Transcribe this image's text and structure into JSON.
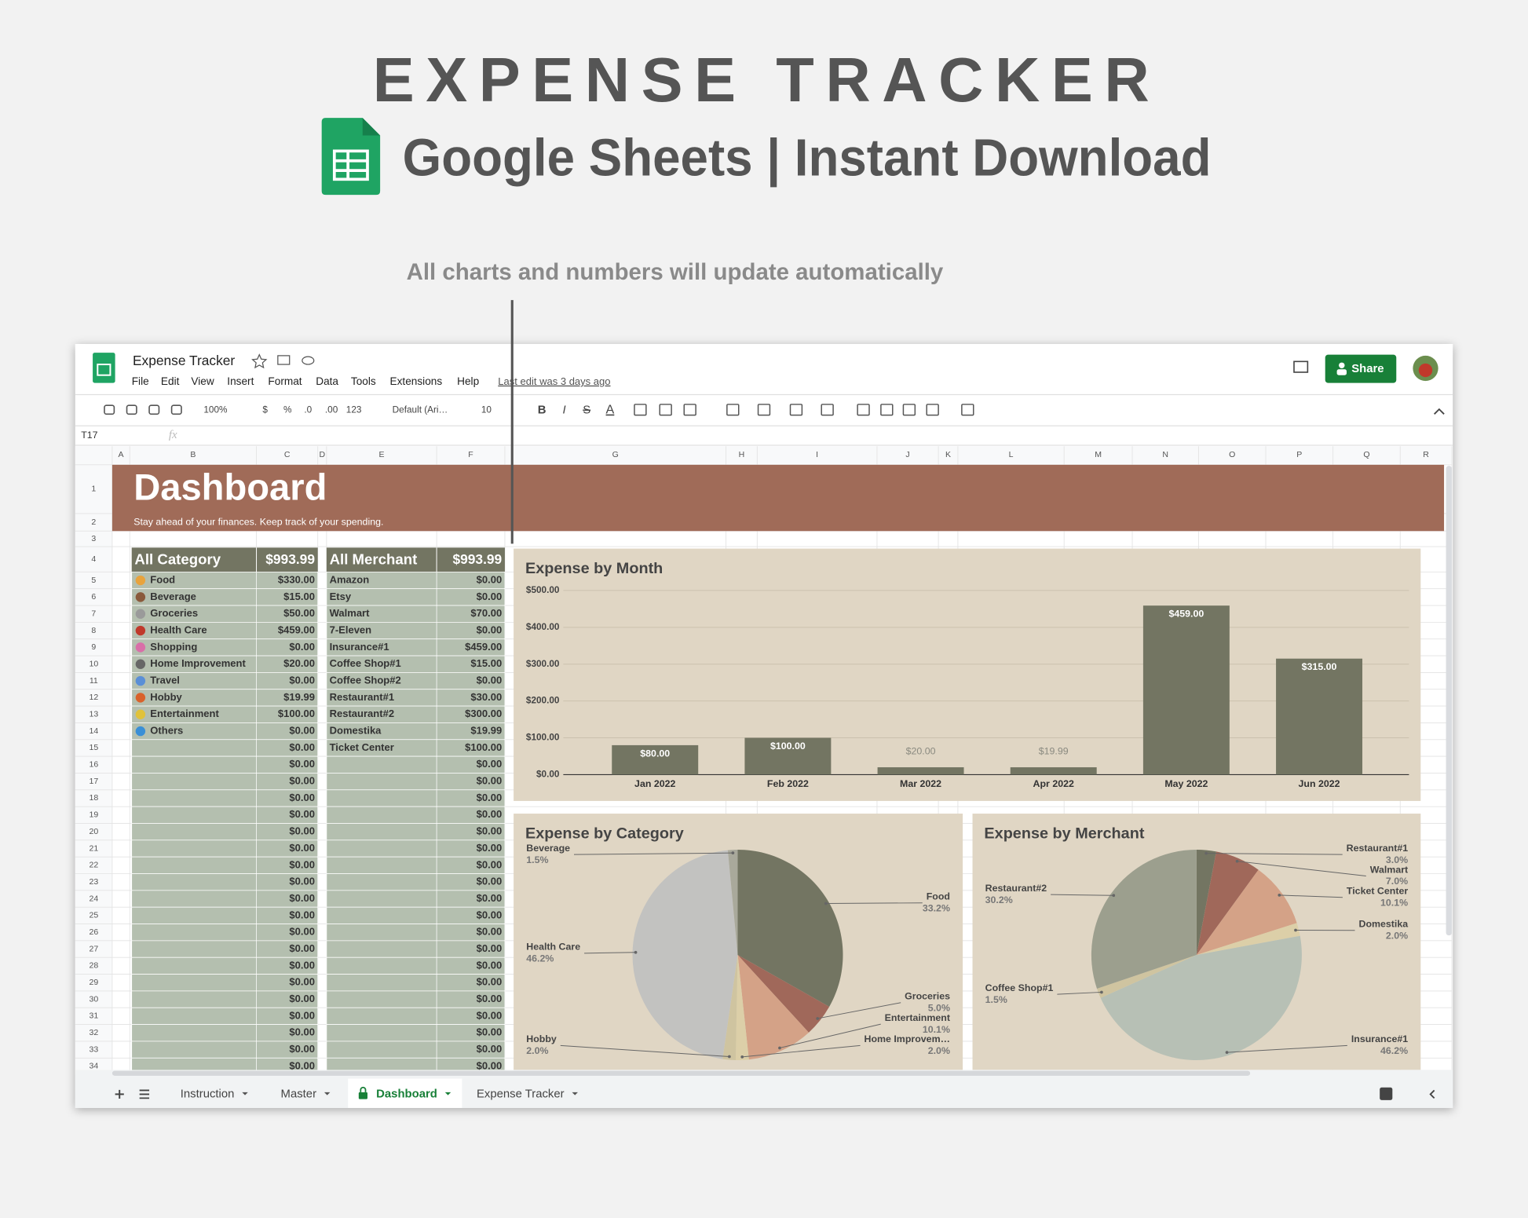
{
  "header": {
    "title": "EXPENSE TRACKER",
    "subtitle": "Google Sheets | Instant Download",
    "note": "All charts and numbers will update automatically"
  },
  "app": {
    "doc_title": "Expense Tracker",
    "menu": [
      "File",
      "Edit",
      "View",
      "Insert",
      "Format",
      "Data",
      "Tools",
      "Extensions",
      "Help"
    ],
    "last_edit": "Last edit was 3 days ago",
    "share": "Share",
    "toolbar": [
      "100%",
      "$",
      "%",
      ".0",
      ".00",
      "123",
      "Default (Ari…",
      "10",
      "B",
      "I",
      "S",
      "A"
    ],
    "cell_ref": "T17",
    "formula_icon": "fx",
    "columns": [
      "A",
      "B",
      "C",
      "D",
      "E",
      "F",
      "G",
      "H",
      "I",
      "J",
      "K",
      "L",
      "M",
      "N",
      "O",
      "P",
      "Q",
      "R"
    ],
    "row_numbers": [
      1,
      2,
      3,
      4,
      5,
      6,
      7,
      8,
      9,
      10,
      11,
      12,
      13,
      14,
      15,
      16,
      17,
      18,
      19,
      20,
      21,
      22,
      23,
      24,
      25,
      26,
      27,
      28,
      29,
      30,
      31,
      32,
      33,
      34
    ],
    "tabs": [
      "Instruction",
      "Master",
      "Dashboard",
      "Expense Tracker"
    ]
  },
  "dashboard": {
    "title": "Dashboard",
    "tagline": "Stay ahead of your finances. Keep track of your spending.",
    "category_table": {
      "header": [
        "All Category",
        "$993.99"
      ],
      "rows": [
        [
          "Food",
          "$330.00"
        ],
        [
          "Beverage",
          "$15.00"
        ],
        [
          "Groceries",
          "$50.00"
        ],
        [
          "Health Care",
          "$459.00"
        ],
        [
          "Shopping",
          "$0.00"
        ],
        [
          "Home Improvement",
          "$20.00"
        ],
        [
          "Travel",
          "$0.00"
        ],
        [
          "Hobby",
          "$19.99"
        ],
        [
          "Entertainment",
          "$100.00"
        ],
        [
          "Others",
          "$0.00"
        ],
        [
          null,
          "$0.00"
        ],
        [
          null,
          "$0.00"
        ],
        [
          null,
          "$0.00"
        ],
        [
          null,
          "$0.00"
        ],
        [
          null,
          "$0.00"
        ],
        [
          null,
          "$0.00"
        ],
        [
          null,
          "$0.00"
        ],
        [
          null,
          "$0.00"
        ],
        [
          null,
          "$0.00"
        ],
        [
          null,
          "$0.00"
        ],
        [
          null,
          "$0.00"
        ],
        [
          null,
          "$0.00"
        ],
        [
          null,
          "$0.00"
        ],
        [
          null,
          "$0.00"
        ],
        [
          null,
          "$0.00"
        ],
        [
          null,
          "$0.00"
        ],
        [
          null,
          "$0.00"
        ],
        [
          null,
          "$0.00"
        ],
        [
          null,
          "$0.00"
        ],
        [
          null,
          "$0.00"
        ]
      ]
    },
    "merchant_table": {
      "header": [
        "All Merchant",
        "$993.99"
      ],
      "rows": [
        [
          "Amazon",
          "$0.00"
        ],
        [
          "Etsy",
          "$0.00"
        ],
        [
          "Walmart",
          "$70.00"
        ],
        [
          "7-Eleven",
          "$0.00"
        ],
        [
          "Insurance#1",
          "$459.00"
        ],
        [
          "Coffee Shop#1",
          "$15.00"
        ],
        [
          "Coffee Shop#2",
          "$0.00"
        ],
        [
          "Restaurant#1",
          "$30.00"
        ],
        [
          "Restaurant#2",
          "$300.00"
        ],
        [
          "Domestika",
          "$19.99"
        ],
        [
          "Ticket Center",
          "$100.00"
        ],
        [
          null,
          "$0.00"
        ],
        [
          null,
          "$0.00"
        ],
        [
          null,
          "$0.00"
        ],
        [
          null,
          "$0.00"
        ],
        [
          null,
          "$0.00"
        ],
        [
          null,
          "$0.00"
        ],
        [
          null,
          "$0.00"
        ],
        [
          null,
          "$0.00"
        ],
        [
          null,
          "$0.00"
        ],
        [
          null,
          "$0.00"
        ],
        [
          null,
          "$0.00"
        ],
        [
          null,
          "$0.00"
        ],
        [
          null,
          "$0.00"
        ],
        [
          null,
          "$0.00"
        ],
        [
          null,
          "$0.00"
        ],
        [
          null,
          "$0.00"
        ],
        [
          null,
          "$0.00"
        ],
        [
          null,
          "$0.00"
        ],
        [
          null,
          "$0.00"
        ]
      ]
    }
  },
  "chart_data": [
    {
      "type": "bar",
      "title": "Expense by Month",
      "categories": [
        "Jan 2022",
        "Feb 2022",
        "Mar 2022",
        "Apr 2022",
        "May 2022",
        "Jun 2022"
      ],
      "values": [
        80,
        100,
        20,
        19.99,
        459,
        315
      ],
      "value_labels": [
        "$80.00",
        "$100.00",
        "$20.00",
        "$19.99",
        "$459.00",
        "$315.00"
      ],
      "color": "#737562",
      "ylim": [
        0,
        500
      ],
      "yticks": [
        {
          "value": 0,
          "label": "$0.00"
        },
        {
          "value": 100,
          "label": "$100.00"
        },
        {
          "value": 200,
          "label": "$200.00"
        },
        {
          "value": 300,
          "label": "$300.00"
        },
        {
          "value": 400,
          "label": "$400.00"
        },
        {
          "value": 500,
          "label": "$500.00"
        }
      ],
      "grid": true
    },
    {
      "type": "pie",
      "title": "Expense by Category",
      "categories": [
        "Food",
        "Groceries",
        "Entertainment",
        "Home Improvem…",
        "Hobby",
        "Health Care",
        "Beverage"
      ],
      "values": [
        33.2,
        5.0,
        10.1,
        2.0,
        2.0,
        46.2,
        1.5
      ],
      "value_labels": [
        "33.2%",
        "5.0%",
        "10.1%",
        "2.0%",
        "2.0%",
        "46.2%",
        "1.5%"
      ],
      "colors": [
        "#737562",
        "#a0685a",
        "#d4a287",
        "#dccfa8",
        "#cfc4a0",
        "#c2c2c0",
        "#a9a99b"
      ]
    },
    {
      "type": "pie",
      "title": "Expense by Merchant",
      "categories": [
        "Restaurant#1",
        "Walmart",
        "Ticket Center",
        "Domestika",
        "Insurance#1",
        "Coffee Shop#1",
        "Restaurant#2"
      ],
      "values": [
        3.0,
        7.0,
        10.1,
        2.0,
        46.2,
        1.5,
        30.2
      ],
      "value_labels": [
        "3.0%",
        "7.0%",
        "10.1%",
        "2.0%",
        "46.2%",
        "1.5%",
        "30.2%"
      ],
      "colors": [
        "#737562",
        "#a0685a",
        "#d4a287",
        "#dccfa8",
        "#b7c0b5",
        "#cfc4a0",
        "#9c9f8e"
      ]
    }
  ]
}
